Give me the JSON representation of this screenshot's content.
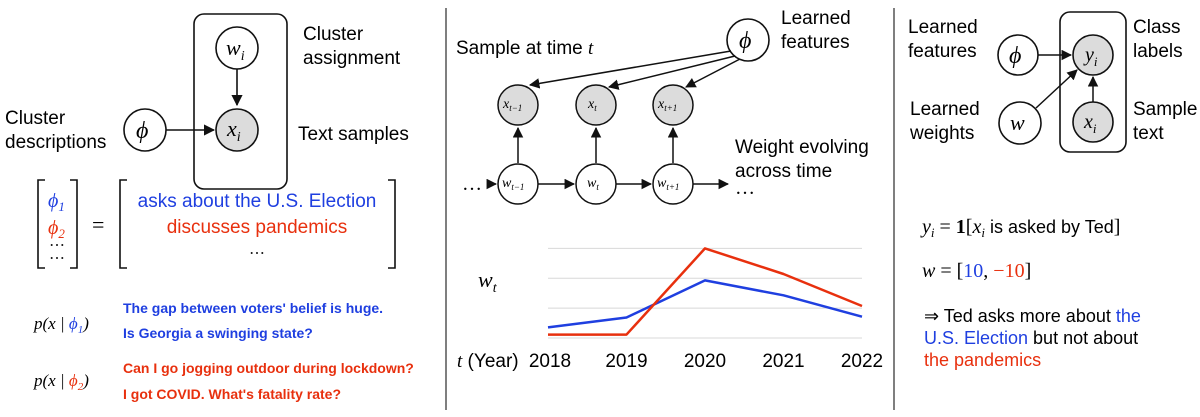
{
  "panel1": {
    "w_label": "w",
    "w_sub": "i",
    "x_label": "x",
    "x_sub": "i",
    "phi_label": "ϕ",
    "cluster_assignment": [
      "Cluster",
      "assignment"
    ],
    "cluster_descriptions": [
      "Cluster",
      "descriptions"
    ],
    "text_samples": "Text samples",
    "matrix_rows": [
      {
        "sym": "ϕ",
        "sub": "1",
        "text": "asks about the U.S. Election",
        "color": "#1f3fe0"
      },
      {
        "sym": "ϕ",
        "sub": "2",
        "text": "discusses pandemics",
        "color": "#e8300e"
      },
      {
        "sym": "⋯",
        "sub": "",
        "text": "⋯",
        "color": "#222222"
      },
      {
        "sym": "⋯",
        "sub": "",
        "text": "",
        "color": "#222222"
      }
    ],
    "equals": "=",
    "cond1": {
      "prefix": "p(x | ",
      "sym": "ϕ",
      "sub": "1",
      "suffix": ")",
      "color": "#1f3fe0",
      "lines": [
        "The gap between voters' belief is huge.",
        "Is Georgia a swinging state?"
      ]
    },
    "cond2": {
      "prefix": "p(x | ",
      "sym": "ϕ",
      "sub": "2",
      "suffix": ")",
      "color": "#e8300e",
      "lines": [
        "Can I go jogging outdoor during lockdown?",
        "I got COVID. What's fatality rate?"
      ]
    }
  },
  "panel2": {
    "phi_label": "ϕ",
    "learned_features": [
      "Learned",
      "features"
    ],
    "sample_at_time": "Sample at time ",
    "sample_t": "t",
    "x_nodes": [
      {
        "base": "x",
        "sub": "t−1"
      },
      {
        "base": "x",
        "sub": "t"
      },
      {
        "base": "x",
        "sub": "t+1"
      }
    ],
    "w_nodes": [
      {
        "base": "w",
        "sub": "t−1"
      },
      {
        "base": "w",
        "sub": "t"
      },
      {
        "base": "w",
        "sub": "t+1"
      }
    ],
    "ellipsis_left": "…",
    "ellipsis_right": "…",
    "weight_evolving": [
      "Weight evolving",
      "across time"
    ],
    "wt_label": "w",
    "wt_sub": "t",
    "x_axis_prefix_t": "t",
    "x_axis_prefix_year": " (Year)"
  },
  "chart_data": {
    "type": "line",
    "x": [
      "2018",
      "2019",
      "2020",
      "2021",
      "2022"
    ],
    "series": [
      {
        "values": [
          0.25,
          0.48,
          1.35,
          1.0,
          0.5
        ],
        "color": "#1f3fe0"
      },
      {
        "values": [
          0.08,
          0.08,
          2.1,
          1.5,
          0.75
        ],
        "color": "#e8300e"
      }
    ],
    "ylim": [
      0,
      2.25
    ],
    "grid": true
  },
  "panel3": {
    "learned_features": [
      "Learned",
      "features"
    ],
    "learned_weights": [
      "Learned",
      "weights"
    ],
    "class_labels": [
      "Class",
      "labels"
    ],
    "sample_text": [
      "Sample",
      "text"
    ],
    "phi_label": "ϕ",
    "w_label": "w",
    "y_label": "y",
    "y_sub": "i",
    "x_label": "x",
    "x_sub": "i",
    "eq1": {
      "lhs": "y",
      "lhs_sub": "i",
      "mid": " = ",
      "one": "1",
      "bracket_open": "[",
      "x": "x",
      "x_sub": "i",
      "text": " is asked by Ted",
      "bracket_close": "]"
    },
    "eq2": {
      "lhs": "w",
      "mid": " = [",
      "v1": "10",
      "comma": ", ",
      "v2": "−10",
      "close": "]"
    },
    "conclusion": {
      "line1a": "⇒ Ted asks more about ",
      "line1b": "the",
      "line2a": "U.S. Election",
      "line2b": " but not about",
      "line3": "the pandemics",
      "blue": "#1f3fe0",
      "red": "#e8300e"
    }
  },
  "colors": {
    "node_fill": "#dcdcdc",
    "line": "#111111",
    "blue": "#1f3fe0",
    "red": "#e8300e",
    "divider": "#555555",
    "grid": "#d8d8d8"
  }
}
